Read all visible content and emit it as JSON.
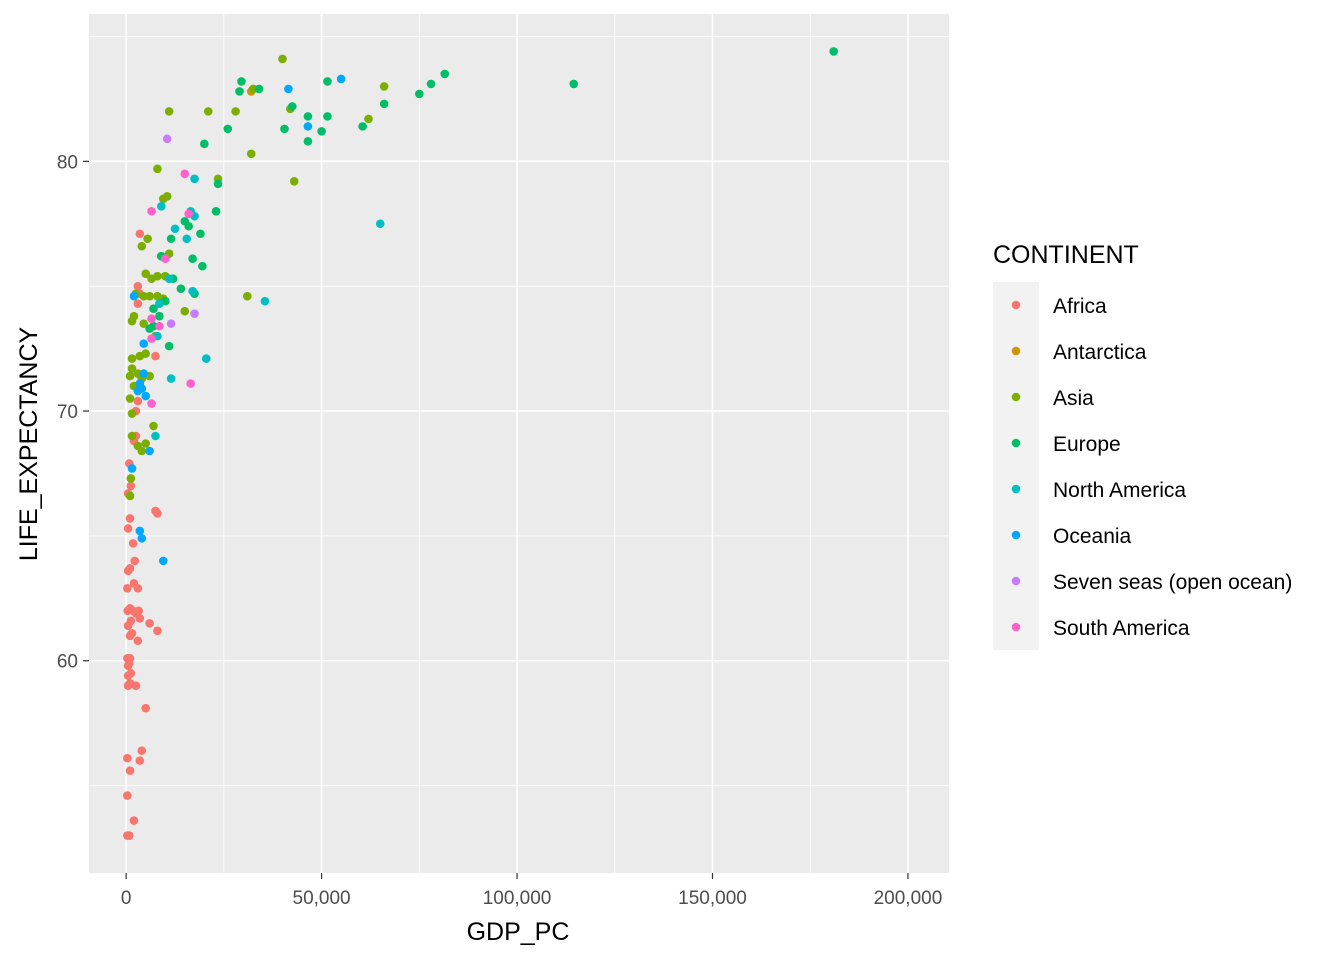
{
  "chart_data": {
    "type": "scatter",
    "xlabel": "GDP_PC",
    "ylabel": "LIFE_EXPECTANCY",
    "xlim": [
      -9500,
      210500
    ],
    "ylim": [
      51.5,
      85.9
    ],
    "x_ticks": [
      0,
      50000,
      100000,
      150000,
      200000
    ],
    "x_tick_labels": [
      "0",
      "50,000",
      "100,000",
      "150,000",
      "200,000"
    ],
    "x_minor_ticks": [
      25000,
      75000,
      125000,
      175000
    ],
    "y_ticks": [
      60,
      70,
      80
    ],
    "y_tick_labels": [
      "60",
      "70",
      "80"
    ],
    "y_minor_ticks": [
      55,
      65,
      75,
      85
    ],
    "grid": true,
    "legend": {
      "title": "CONTINENT",
      "placement": "right",
      "entries": [
        "Africa",
        "Antarctica",
        "Asia",
        "Europe",
        "North America",
        "Oceania",
        "Seven seas (open ocean)",
        "South America"
      ],
      "colors": [
        "#F8766D",
        "#CD9600",
        "#7CAE00",
        "#00BE67",
        "#00BFC4",
        "#00A9FF",
        "#C77CFF",
        "#FF61CC"
      ]
    },
    "series": [
      {
        "name": "Africa",
        "color": "#F8766D",
        "points": [
          [
            300,
            53.0
          ],
          [
            800,
            53.0
          ],
          [
            2000,
            53.6
          ],
          [
            300,
            54.6
          ],
          [
            1000,
            55.6
          ],
          [
            300,
            56.1
          ],
          [
            3500,
            56.0
          ],
          [
            4000,
            56.4
          ],
          [
            5000,
            58.1
          ],
          [
            500,
            59.0
          ],
          [
            1000,
            59.1
          ],
          [
            2500,
            59.0
          ],
          [
            500,
            59.4
          ],
          [
            1200,
            59.5
          ],
          [
            500,
            59.8
          ],
          [
            800,
            59.9
          ],
          [
            300,
            60.1
          ],
          [
            1000,
            60.1
          ],
          [
            3000,
            60.8
          ],
          [
            1000,
            61.0
          ],
          [
            1500,
            61.1
          ],
          [
            6000,
            61.5
          ],
          [
            8000,
            61.2
          ],
          [
            500,
            61.4
          ],
          [
            1200,
            61.6
          ],
          [
            400,
            62.0
          ],
          [
            1000,
            62.1
          ],
          [
            1800,
            62.0
          ],
          [
            2500,
            61.9
          ],
          [
            3200,
            62.0
          ],
          [
            3500,
            61.7
          ],
          [
            300,
            62.9
          ],
          [
            2000,
            63.1
          ],
          [
            3000,
            62.9
          ],
          [
            500,
            63.6
          ],
          [
            1000,
            63.7
          ],
          [
            2200,
            64.0
          ],
          [
            1800,
            64.7
          ],
          [
            500,
            65.3
          ],
          [
            1000,
            65.7
          ],
          [
            500,
            66.7
          ],
          [
            1200,
            67.0
          ],
          [
            800,
            67.9
          ],
          [
            2000,
            68.8
          ],
          [
            2500,
            69.0
          ],
          [
            2500,
            70.0
          ],
          [
            3000,
            70.4
          ],
          [
            3500,
            71.0
          ],
          [
            7500,
            72.2
          ],
          [
            3000,
            74.3
          ],
          [
            3500,
            74.7
          ],
          [
            3000,
            75.0
          ],
          [
            3500,
            77.1
          ],
          [
            7500,
            66.0
          ],
          [
            8000,
            65.9
          ]
        ]
      },
      {
        "name": "Antarctica",
        "color": "#CD9600",
        "points": [
          [
            32000,
            82.8
          ]
        ]
      },
      {
        "name": "Asia",
        "color": "#7CAE00",
        "points": [
          [
            1000,
            66.6
          ],
          [
            1200,
            67.3
          ],
          [
            1500,
            69.0
          ],
          [
            1500,
            69.9
          ],
          [
            1000,
            70.5
          ],
          [
            3000,
            68.6
          ],
          [
            4000,
            68.4
          ],
          [
            5000,
            68.7
          ],
          [
            7000,
            69.4
          ],
          [
            2000,
            71.0
          ],
          [
            1000,
            71.4
          ],
          [
            1500,
            71.7
          ],
          [
            3000,
            71.5
          ],
          [
            4000,
            71.3
          ],
          [
            6000,
            71.4
          ],
          [
            1500,
            72.1
          ],
          [
            3500,
            72.2
          ],
          [
            5000,
            72.3
          ],
          [
            7500,
            73.0
          ],
          [
            1500,
            73.6
          ],
          [
            2000,
            73.8
          ],
          [
            4500,
            73.5
          ],
          [
            2500,
            74.7
          ],
          [
            4500,
            74.6
          ],
          [
            6000,
            74.6
          ],
          [
            8000,
            74.6
          ],
          [
            9500,
            74.5
          ],
          [
            5000,
            75.5
          ],
          [
            6500,
            75.3
          ],
          [
            8000,
            75.4
          ],
          [
            10000,
            75.4
          ],
          [
            4000,
            76.6
          ],
          [
            5500,
            76.9
          ],
          [
            9000,
            76.2
          ],
          [
            11000,
            76.3
          ],
          [
            9500,
            78.5
          ],
          [
            10500,
            78.6
          ],
          [
            8000,
            79.7
          ],
          [
            23000,
            78.0
          ],
          [
            23500,
            79.3
          ],
          [
            31000,
            74.6
          ],
          [
            43000,
            79.2
          ],
          [
            32000,
            80.3
          ],
          [
            11000,
            82.0
          ],
          [
            21000,
            82.0
          ],
          [
            28000,
            82.0
          ],
          [
            32500,
            82.9
          ],
          [
            40000,
            84.1
          ],
          [
            42000,
            82.1
          ],
          [
            62000,
            81.7
          ],
          [
            66000,
            83.0
          ],
          [
            15000,
            74.0
          ]
        ]
      },
      {
        "name": "Europe",
        "color": "#00BE67",
        "points": [
          [
            6000,
            73.3
          ],
          [
            7000,
            73.4
          ],
          [
            7000,
            74.1
          ],
          [
            8500,
            73.8
          ],
          [
            10000,
            74.4
          ],
          [
            11000,
            72.6
          ],
          [
            12000,
            75.3
          ],
          [
            14000,
            74.9
          ],
          [
            17500,
            74.7
          ],
          [
            9000,
            76.2
          ],
          [
            11500,
            76.9
          ],
          [
            15000,
            77.6
          ],
          [
            16000,
            77.4
          ],
          [
            17000,
            76.1
          ],
          [
            19500,
            75.8
          ],
          [
            19000,
            77.1
          ],
          [
            23500,
            79.1
          ],
          [
            23000,
            78.0
          ],
          [
            20000,
            80.7
          ],
          [
            26000,
            81.3
          ],
          [
            29000,
            82.8
          ],
          [
            29500,
            83.2
          ],
          [
            34000,
            82.9
          ],
          [
            40500,
            81.3
          ],
          [
            42500,
            82.2
          ],
          [
            46500,
            80.8
          ],
          [
            46500,
            81.8
          ],
          [
            50000,
            81.2
          ],
          [
            51500,
            81.8
          ],
          [
            51500,
            83.2
          ],
          [
            60500,
            81.4
          ],
          [
            66000,
            82.3
          ],
          [
            75000,
            82.7
          ],
          [
            78000,
            83.1
          ],
          [
            81500,
            83.5
          ],
          [
            114500,
            83.1
          ],
          [
            181000,
            84.4
          ]
        ]
      },
      {
        "name": "North America",
        "color": "#00BFC4",
        "points": [
          [
            7500,
            69.0
          ],
          [
            8000,
            73.0
          ],
          [
            8500,
            74.3
          ],
          [
            11500,
            71.3
          ],
          [
            11000,
            75.3
          ],
          [
            12500,
            77.3
          ],
          [
            15500,
            76.9
          ],
          [
            16500,
            78.0
          ],
          [
            17500,
            77.8
          ],
          [
            17500,
            79.3
          ],
          [
            17000,
            74.8
          ],
          [
            20500,
            72.1
          ],
          [
            9000,
            78.2
          ],
          [
            35500,
            74.4
          ],
          [
            65000,
            77.5
          ]
        ]
      },
      {
        "name": "Oceania",
        "color": "#00A9FF",
        "points": [
          [
            1500,
            67.7
          ],
          [
            3500,
            65.2
          ],
          [
            4000,
            64.9
          ],
          [
            9500,
            64.0
          ],
          [
            3000,
            70.8
          ],
          [
            3500,
            71.1
          ],
          [
            4000,
            70.9
          ],
          [
            4500,
            71.5
          ],
          [
            5000,
            70.6
          ],
          [
            6000,
            68.4
          ],
          [
            2000,
            74.6
          ],
          [
            4500,
            72.7
          ],
          [
            46500,
            81.4
          ],
          [
            41500,
            82.9
          ],
          [
            55000,
            83.3
          ]
        ]
      },
      {
        "name": "Seven seas (open ocean)",
        "color": "#C77CFF",
        "points": [
          [
            11500,
            73.5
          ],
          [
            17500,
            73.9
          ],
          [
            10500,
            80.9
          ]
        ]
      },
      {
        "name": "South America",
        "color": "#FF61CC",
        "points": [
          [
            6500,
            70.3
          ],
          [
            6500,
            72.9
          ],
          [
            6500,
            73.7
          ],
          [
            8500,
            73.4
          ],
          [
            10000,
            76.1
          ],
          [
            16000,
            77.9
          ],
          [
            16500,
            71.1
          ],
          [
            15000,
            79.5
          ],
          [
            6500,
            78.0
          ]
        ]
      }
    ]
  }
}
